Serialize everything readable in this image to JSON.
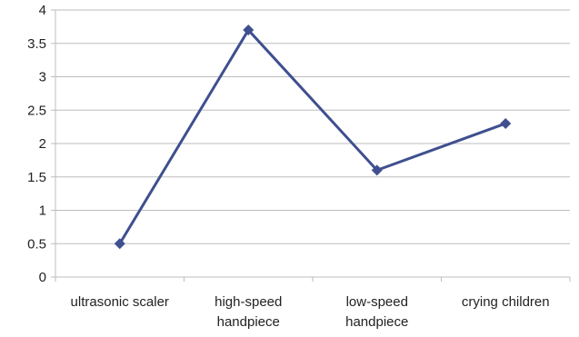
{
  "chart_data": {
    "type": "line",
    "categories": [
      [
        "ultrasonic scaler"
      ],
      [
        "high-speed",
        "handpiece"
      ],
      [
        "low-speed",
        "handpiece"
      ],
      [
        "crying children"
      ]
    ],
    "series": [
      {
        "values": [
          0.5,
          3.7,
          1.6,
          2.3
        ],
        "color": "#3f4f8f",
        "marker": "diamond"
      }
    ],
    "ylim": [
      0,
      4
    ],
    "yticks": [
      0,
      0.5,
      1,
      1.5,
      2,
      2.5,
      3,
      3.5,
      4
    ],
    "grid": true
  }
}
